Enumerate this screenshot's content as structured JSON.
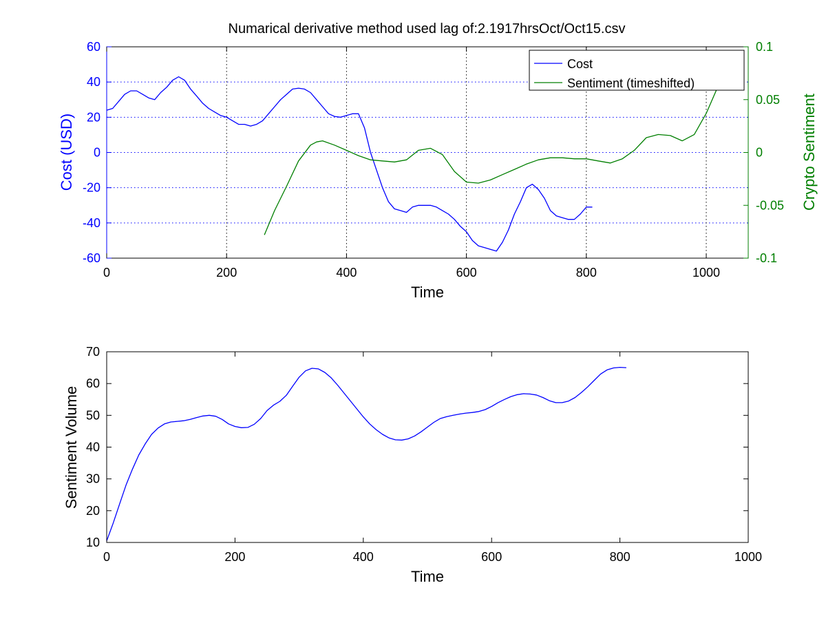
{
  "chart_data": [
    {
      "type": "line",
      "title": "Numarical derivative method used lag of:2.1917hrsOct/Oct15.csv",
      "xlabel": "Time",
      "ylabel_left": "Cost (USD)",
      "ylabel_right": "Crypto Sentiment",
      "xlim": [
        0,
        1070
      ],
      "ylim_left": [
        -60,
        60
      ],
      "ylim_right": [
        -0.1,
        0.1
      ],
      "x_ticks": [
        "0",
        "200",
        "400",
        "600",
        "800",
        "1000"
      ],
      "y_ticks_left": [
        "-60",
        "-40",
        "-20",
        "0",
        "20",
        "40",
        "60"
      ],
      "y_ticks_right": [
        "-0.1",
        "-0.05",
        "0",
        "0.05",
        "0.1"
      ],
      "grid": true,
      "legend": "top-right",
      "colors": {
        "cost": "#0000ff",
        "sentiment": "#007f00",
        "grid_y": "#0000ff",
        "grid_x": "#000000"
      },
      "series": [
        {
          "name": "Cost",
          "axis": "left",
          "color": "#0000ff",
          "x": [
            0,
            10,
            20,
            30,
            40,
            50,
            60,
            70,
            80,
            90,
            100,
            110,
            120,
            130,
            140,
            150,
            160,
            170,
            180,
            190,
            200,
            210,
            220,
            230,
            240,
            250,
            260,
            270,
            280,
            290,
            300,
            310,
            320,
            330,
            340,
            350,
            360,
            370,
            380,
            390,
            400,
            410,
            420,
            430,
            440,
            450,
            460,
            470,
            480,
            490,
            500,
            510,
            520,
            530,
            540,
            550,
            560,
            570,
            580,
            590,
            600,
            610,
            620,
            630,
            640,
            650,
            660,
            670,
            680,
            690,
            700,
            710,
            720,
            730,
            740,
            750,
            760,
            770,
            780,
            790,
            800,
            810
          ],
          "y": [
            24,
            25,
            29,
            33,
            35,
            35,
            33,
            31,
            30,
            34,
            37,
            41,
            43,
            41,
            36,
            32,
            28,
            25,
            23,
            21,
            20,
            18,
            16,
            16,
            15,
            16,
            18,
            22,
            26,
            30,
            33,
            36,
            36.5,
            36,
            34,
            30,
            26,
            22,
            20.5,
            20,
            21,
            22,
            22,
            14,
            0,
            -10,
            -20,
            -28,
            -32,
            -33,
            -34,
            -31,
            -30,
            -30,
            -30,
            -31,
            -33,
            -35,
            -38,
            -42,
            -45,
            -50,
            -53,
            -54,
            -55,
            -56,
            -51,
            -44,
            -35,
            -28,
            -20,
            -18,
            -21,
            -26,
            -33,
            -36,
            -37,
            -38,
            -38,
            -35,
            -31,
            -31
          ]
        },
        {
          "name": "Sentiment (timeshifted)",
          "axis": "right",
          "color": "#007f00",
          "x": [
            263,
            280,
            300,
            320,
            340,
            350,
            360,
            380,
            400,
            420,
            440,
            460,
            480,
            500,
            520,
            540,
            560,
            580,
            600,
            620,
            640,
            660,
            680,
            700,
            720,
            740,
            760,
            780,
            800,
            820,
            840,
            860,
            880,
            900,
            920,
            940,
            960,
            980,
            1000,
            1020,
            1040
          ],
          "y": [
            -0.078,
            -0.055,
            -0.032,
            -0.008,
            0.007,
            0.01,
            0.011,
            0.007,
            0.002,
            -0.003,
            -0.007,
            -0.008,
            -0.009,
            -0.007,
            0.002,
            0.004,
            -0.002,
            -0.018,
            -0.028,
            -0.029,
            -0.026,
            -0.021,
            -0.016,
            -0.011,
            -0.007,
            -0.005,
            -0.005,
            -0.006,
            -0.006,
            -0.008,
            -0.01,
            -0.006,
            0.002,
            0.014,
            0.017,
            0.016,
            0.011,
            0.017,
            0.037,
            0.063,
            0.078
          ]
        }
      ]
    },
    {
      "type": "line",
      "xlabel": "Time",
      "ylabel": "Sentiment Volume",
      "xlim": [
        0,
        1000
      ],
      "ylim": [
        10,
        70
      ],
      "x_ticks": [
        "0",
        "200",
        "400",
        "600",
        "800",
        "1000"
      ],
      "y_ticks": [
        "10",
        "20",
        "30",
        "40",
        "50",
        "60",
        "70"
      ],
      "grid": false,
      "series": [
        {
          "color": "#0000ff",
          "x": [
            0,
            10,
            20,
            30,
            40,
            50,
            60,
            70,
            80,
            90,
            100,
            110,
            120,
            130,
            140,
            150,
            160,
            170,
            180,
            190,
            200,
            210,
            220,
            230,
            240,
            250,
            260,
            270,
            280,
            290,
            300,
            310,
            320,
            330,
            340,
            350,
            360,
            370,
            380,
            390,
            400,
            410,
            420,
            430,
            440,
            450,
            460,
            470,
            480,
            490,
            500,
            510,
            520,
            530,
            540,
            550,
            560,
            570,
            580,
            590,
            600,
            610,
            620,
            630,
            640,
            650,
            660,
            670,
            680,
            690,
            700,
            710,
            720,
            730,
            740,
            750,
            760,
            770,
            780,
            790,
            800,
            810
          ],
          "y": [
            10.5,
            16,
            22,
            28,
            33,
            37.5,
            41,
            44,
            46,
            47.3,
            47.9,
            48.1,
            48.3,
            48.7,
            49.3,
            49.8,
            50,
            49.7,
            48.7,
            47.3,
            46.5,
            46.1,
            46.2,
            47.2,
            49,
            51.5,
            53.2,
            54.4,
            56.3,
            59.2,
            62,
            64,
            64.8,
            64.6,
            63.5,
            61.8,
            59.5,
            57,
            54.5,
            52,
            49.5,
            47.3,
            45.5,
            44,
            42.9,
            42.3,
            42.2,
            42.6,
            43.5,
            44.8,
            46.3,
            47.8,
            49,
            49.6,
            50,
            50.4,
            50.7,
            50.9,
            51.2,
            51.8,
            52.8,
            54,
            55,
            55.9,
            56.5,
            56.8,
            56.7,
            56.4,
            55.6,
            54.6,
            54,
            54,
            54.5,
            55.6,
            57.2,
            59,
            61,
            63,
            64.3,
            64.9,
            65.1,
            65
          ]
        }
      ]
    }
  ]
}
